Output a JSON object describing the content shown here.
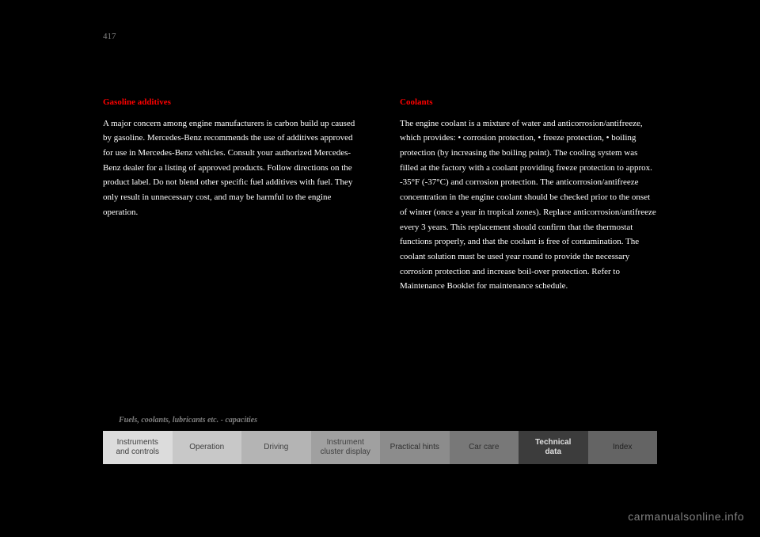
{
  "page_number": "417",
  "breadcrumb": "Fuels, coolants, lubricants etc. - capacities",
  "left_column": {
    "heading": "Gasoline additives",
    "body": "A major concern among engine manufacturers is carbon build up caused by gasoline. Mercedes-Benz recommends the use of additives approved for use in Mercedes-Benz vehicles. Consult your authorized Mercedes-Benz dealer for a listing of approved products. Follow directions on the product label. Do not blend other specific fuel additives with fuel. They only result in unnecessary cost, and may be harmful to the engine operation."
  },
  "right_column": {
    "heading": "Coolants",
    "body": "The engine coolant is a mixture of water and anticorrosion/antifreeze, which provides:\n• corrosion protection,\n• freeze protection,\n• boiling protection (by increasing the boiling point).\nThe cooling system was filled at the factory with a coolant providing freeze protection to approx. -35°F (-37°C) and corrosion protection.\nThe anticorrosion/antifreeze concentration in the engine coolant should be checked prior to the onset of winter (once a year in tropical zones).\nReplace anticorrosion/antifreeze every 3 years. This replacement should confirm that the thermostat functions properly, and that the coolant is free of contamination.\nThe coolant solution must be used year round to provide the necessary corrosion protection and increase boil-over protection. Refer to Maintenance Booklet for maintenance schedule."
  },
  "tabs": [
    {
      "label": "Instruments\nand controls",
      "bg": "#dcdcdc",
      "color": "#404040"
    },
    {
      "label": "Operation",
      "bg": "#c8c8c8",
      "color": "#404040"
    },
    {
      "label": "Driving",
      "bg": "#b4b4b4",
      "color": "#404040"
    },
    {
      "label": "Instrument\ncluster display",
      "bg": "#a0a0a0",
      "color": "#404040"
    },
    {
      "label": "Practical hints",
      "bg": "#8c8c8c",
      "color": "#303030"
    },
    {
      "label": "Car care",
      "bg": "#787878",
      "color": "#303030"
    },
    {
      "label": "Technical\ndata",
      "bg": "#3c3c3c",
      "color": "#e0e0e0"
    },
    {
      "label": "Index",
      "bg": "#646464",
      "color": "#202020"
    }
  ],
  "watermark": "carmanualsonline.info"
}
